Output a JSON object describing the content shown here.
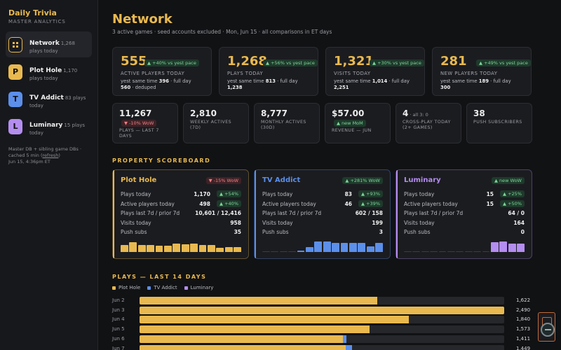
{
  "sidebar": {
    "brand": "Daily Trivia",
    "brand_sub": "MASTER ANALYTICS",
    "items": [
      {
        "title": "Network",
        "count": "1,268",
        "sub": "plays today",
        "icon": "grid-icon",
        "letter": "",
        "color": "#e9b94f"
      },
      {
        "title": "Plot Hole",
        "count": "1,170",
        "sub": "plays today",
        "icon": "letter-p-icon",
        "letter": "P",
        "color": "#e9b94f"
      },
      {
        "title": "TV Addict",
        "count": "83 plays",
        "sub": "today",
        "icon": "letter-t-icon",
        "letter": "T",
        "color": "#5b8fea"
      },
      {
        "title": "Luminary",
        "count": "15 plays",
        "sub": "today",
        "icon": "letter-l-icon",
        "letter": "L",
        "color": "#b48df0"
      }
    ],
    "note_1": "Master DB + sibling game DBs ·",
    "note_2_pre": "cached 5 min (",
    "note_link": "refresh",
    "note_2_post": ")",
    "note_3": "Jun 15, 4:36pm ET"
  },
  "header": {
    "title": "Network",
    "subtitle": "3 active games · seed accounts excluded · Mon, Jun 15 · all comparisons in ET days"
  },
  "kpis": [
    {
      "value": "555",
      "badge": "▲ +40% vs yest pace",
      "label": "ACTIVE PLAYERS TODAY",
      "line1_pre": "yest same time ",
      "line1_val": "396",
      "line1_post": " · full day",
      "line2_val": "560",
      "line2_post": " · deduped"
    },
    {
      "value": "1,268",
      "badge": "▲ +56% vs yest pace",
      "label": "PLAYS TODAY",
      "line1_pre": "yest same time ",
      "line1_val": "813",
      "line1_post": " · full day",
      "line2_val": "1,238",
      "line2_post": ""
    },
    {
      "value": "1,321",
      "badge": "▲ +30% vs yest pace",
      "label": "VISITS TODAY",
      "line1_pre": "yest same time ",
      "line1_val": "1,014",
      "line1_post": " · full day",
      "line2_val": "2,251",
      "line2_post": ""
    },
    {
      "value": "281",
      "badge": "▲ +49% vs yest pace",
      "label": "NEW PLAYERS TODAY",
      "line1_pre": "yest same time ",
      "line1_val": "189",
      "line1_post": " · full day",
      "line2_val": "300",
      "line2_post": ""
    }
  ],
  "stats": [
    {
      "value": "11,267",
      "aside": "",
      "badge": "▼ -10% WoW",
      "label": "PLAYS — LAST 7 DAYS"
    },
    {
      "value": "2,810",
      "aside": "",
      "badge": "",
      "label": "WEEKLY ACTIVES (7D)"
    },
    {
      "value": "8,777",
      "aside": "",
      "badge": "",
      "label": "MONTHLY ACTIVES (30D)"
    },
    {
      "value": "$57.00",
      "aside": "",
      "badge": "▲ new MoM",
      "label": "REVENUE — JUN"
    },
    {
      "value": "4",
      "aside": " · all 3: 0",
      "badge": "",
      "label": "CROSS-PLAY TODAY (2+ GAMES)"
    },
    {
      "value": "38",
      "aside": "",
      "badge": "",
      "label": "PUSH SUBSCRIBERS"
    }
  ],
  "scoreboard": {
    "title": "PROPERTY SCOREBOARD",
    "row_labels": [
      "Plays today",
      "Active players today",
      "Plays last 7d / prior 7d",
      "Visits today",
      "Push subs"
    ],
    "props": [
      {
        "name": "Plot Hole",
        "color": "#e9b94f",
        "badge": "▼ -15% WoW",
        "badge_dir": "down",
        "plays_today": "1,170",
        "plays_delta": "▲ +54%",
        "active": "498",
        "active_delta": "▲ +40%",
        "last7": "10,601 / 12,416",
        "visits": "958",
        "push": "35",
        "spark": [
          0.6,
          0.85,
          0.65,
          0.6,
          0.55,
          0.58,
          0.75,
          0.7,
          0.75,
          0.65,
          0.6,
          0.4,
          0.45,
          0.45
        ]
      },
      {
        "name": "TV Addict",
        "color": "#5b8fea",
        "badge": "▲ +281% WoW",
        "badge_dir": "up",
        "plays_today": "83",
        "plays_delta": "▲ +93%",
        "active": "46",
        "active_delta": "▲ +39%",
        "last7": "602 / 158",
        "visits": "199",
        "push": "3",
        "spark": [
          0.04,
          0.04,
          0.04,
          0.04,
          0.15,
          0.45,
          0.95,
          0.95,
          0.8,
          0.8,
          0.8,
          0.8,
          0.5,
          0.8
        ]
      },
      {
        "name": "Luminary",
        "color": "#b48df0",
        "badge": "▲ new WoW",
        "badge_dir": "up",
        "plays_today": "15",
        "plays_delta": "▲ +25%",
        "active": "15",
        "active_delta": "▲ +50%",
        "last7": "64 / 0",
        "visits": "164",
        "push": "0",
        "spark": [
          0.04,
          0.04,
          0.04,
          0.04,
          0.04,
          0.04,
          0.04,
          0.04,
          0.04,
          0.04,
          0.85,
          0.95,
          0.75,
          0.75
        ]
      }
    ]
  },
  "plays_chart": {
    "title": "PLAYS — LAST 14 DAYS",
    "legend": [
      {
        "name": "Plot Hole",
        "color": "#e9b94f"
      },
      {
        "name": "TV Addict",
        "color": "#5b8fea"
      },
      {
        "name": "Luminary",
        "color": "#b48df0"
      }
    ],
    "max": 2490,
    "rows": [
      {
        "date": "Jun 2",
        "values": [
          1622,
          0,
          0
        ],
        "total": "1,622"
      },
      {
        "date": "Jun 3",
        "values": [
          2490,
          0,
          0
        ],
        "total": "2,490"
      },
      {
        "date": "Jun 4",
        "values": [
          1840,
          0,
          0
        ],
        "total": "1,840"
      },
      {
        "date": "Jun 5",
        "values": [
          1573,
          0,
          0
        ],
        "total": "1,573"
      },
      {
        "date": "Jun 6",
        "values": [
          1391,
          20,
          0
        ],
        "total": "1,411"
      },
      {
        "date": "Jun 7",
        "values": [
          1409,
          40,
          0
        ],
        "total": "1,449"
      }
    ]
  }
}
